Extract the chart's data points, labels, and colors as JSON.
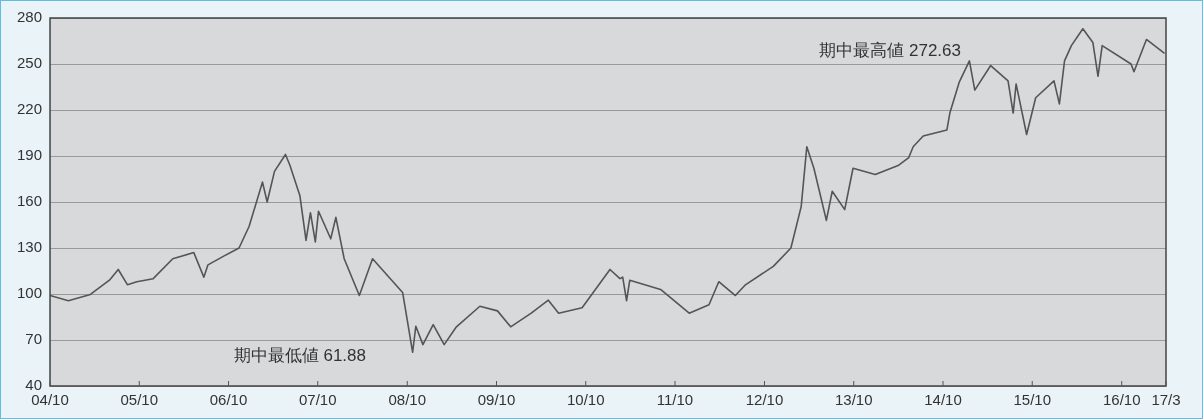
{
  "chart_data": {
    "type": "line",
    "x": [
      "2004-10-01",
      "2004-12-15",
      "2005-03-15",
      "2005-06-01",
      "2005-07-07",
      "2005-08-14",
      "2005-09-21",
      "2005-11-27",
      "2006-02-15",
      "2006-05-12",
      "2006-06-22",
      "2006-07-09",
      "2006-09-15",
      "2006-11-13",
      "2006-12-24",
      "2007-02-17",
      "2007-03-08",
      "2007-04-07",
      "2007-05-22",
      "2007-06-09",
      "2007-07-20",
      "2007-08-14",
      "2007-09-01",
      "2007-09-21",
      "2007-10-04",
      "2007-11-23",
      "2007-12-14",
      "2008-01-17",
      "2008-03-19",
      "2008-05-12",
      "2008-09-12",
      "2008-10-23",
      "2008-11-05",
      "2008-12-04",
      "2009-01-15",
      "2009-03-01",
      "2009-04-20",
      "2009-07-25",
      "2009-10-05",
      "2009-11-28",
      "2010-02-20",
      "2010-05-01",
      "2010-06-12",
      "2010-09-16",
      "2011-01-08",
      "2011-02-18",
      "2011-03-01",
      "2011-03-17",
      "2011-03-30",
      "2011-08-03",
      "2011-11-28",
      "2012-02-17",
      "2012-03-28",
      "2012-06-04",
      "2012-07-15",
      "2012-11-06",
      "2013-01-17",
      "2013-02-28",
      "2013-03-23",
      "2013-04-21",
      "2013-06-11",
      "2013-07-05",
      "2013-08-25",
      "2013-09-28",
      "2013-12-28",
      "2014-04-03",
      "2014-05-14",
      "2014-06-01",
      "2014-07-12",
      "2014-10-17",
      "2014-10-29",
      "2014-12-06",
      "2015-01-17",
      "2015-02-08",
      "2015-04-14",
      "2015-06-24",
      "2015-07-15",
      "2015-07-27",
      "2015-09-08",
      "2015-10-15",
      "2015-12-29",
      "2016-01-20",
      "2016-02-10",
      "2016-03-09",
      "2016-04-25",
      "2016-06-05",
      "2016-06-26",
      "2016-07-13",
      "2016-11-08",
      "2016-11-20",
      "2017-01-10",
      "2017-03-25"
    ],
    "series": [
      {
        "color": "#555555",
        "values": [
          99,
          95.6,
          99.7,
          109,
          116,
          106,
          108,
          110,
          123,
          127,
          111,
          119,
          125,
          130,
          144,
          173,
          160,
          180,
          191,
          184,
          164,
          135,
          153,
          134,
          154,
          136,
          150,
          123,
          99,
          123,
          101,
          62,
          79,
          67,
          80,
          67,
          78.6,
          92,
          89,
          78.6,
          87.5,
          96,
          87.5,
          91,
          116,
          110,
          111,
          95.6,
          109,
          103,
          87.5,
          93,
          108,
          99,
          106,
          118,
          130,
          157,
          196,
          182,
          148,
          167,
          155,
          182,
          178,
          184,
          189,
          196,
          203,
          207,
          218,
          238,
          252,
          233,
          249,
          239,
          218,
          237,
          204,
          228,
          239,
          224,
          252,
          262,
          273,
          264,
          242,
          262,
          250,
          245,
          266,
          257
        ]
      }
    ],
    "xlim": [
      "2004-10-01",
      "2017-03-31"
    ],
    "xticks": [
      {
        "value": "2004-10-01",
        "label": "04/10"
      },
      {
        "value": "2005-10-01",
        "label": "05/10"
      },
      {
        "value": "2006-10-01",
        "label": "06/10"
      },
      {
        "value": "2007-10-01",
        "label": "07/10"
      },
      {
        "value": "2008-10-01",
        "label": "08/10"
      },
      {
        "value": "2009-10-01",
        "label": "09/10"
      },
      {
        "value": "2010-10-01",
        "label": "10/10"
      },
      {
        "value": "2011-10-01",
        "label": "11/10"
      },
      {
        "value": "2012-10-01",
        "label": "12/10"
      },
      {
        "value": "2013-10-01",
        "label": "13/10"
      },
      {
        "value": "2014-10-01",
        "label": "14/10"
      },
      {
        "value": "2015-10-01",
        "label": "15/10"
      },
      {
        "value": "2016-10-01",
        "label": "16/10"
      },
      {
        "value": "2017-03-31",
        "label": "17/3"
      }
    ],
    "ylim": [
      40,
      280
    ],
    "yticks": [
      40,
      70,
      100,
      130,
      160,
      190,
      220,
      250,
      280
    ],
    "grid": "y",
    "annotations": [
      "期中最低値 61.88",
      "期中最高値 272.63"
    ]
  }
}
